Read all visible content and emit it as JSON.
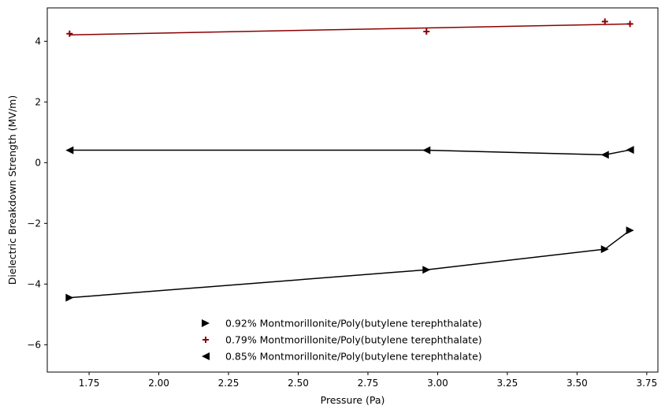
{
  "chart_data": {
    "type": "line",
    "title": "",
    "xlabel": "Pressure (Pa)",
    "ylabel": "Dielectric Breakdown Strength (MV/m)",
    "xlim": [
      1.6,
      3.79
    ],
    "ylim": [
      -6.9,
      5.1
    ],
    "xticks": [
      "1.75",
      "2.00",
      "2.25",
      "2.50",
      "2.75",
      "3.00",
      "3.25",
      "3.50",
      "3.75"
    ],
    "yticks": [
      "−6",
      "−4",
      "−2",
      "0",
      "2",
      "4"
    ],
    "grid": false,
    "legend_position": "bottom-center",
    "series": [
      {
        "name": "0.92% Montmorillonite/Poly(butylene terephthalate)",
        "marker": "triangle-right",
        "color": "#000000",
        "markers_only": false,
        "x": [
          1.68,
          2.96,
          3.6,
          3.69
        ],
        "y": [
          -4.45,
          -3.53,
          -2.85,
          -2.23
        ],
        "line_x": [
          1.68,
          2.96,
          3.6,
          3.69
        ],
        "line_y": [
          -4.45,
          -3.53,
          -2.85,
          -2.23
        ]
      },
      {
        "name": "0.79% Montmorillonite/Poly(butylene terephthalate)",
        "marker": "plus",
        "color": "#8b0000",
        "markers_only": true,
        "x": [
          1.68,
          2.96,
          3.6,
          3.69
        ],
        "y": [
          4.25,
          4.32,
          4.65,
          4.57
        ],
        "line_x": [
          1.68,
          3.69
        ],
        "line_y": [
          4.21,
          4.57
        ]
      },
      {
        "name": "0.85% Montmorillonite/Poly(butylene terephthalate)",
        "marker": "triangle-left",
        "color": "#000000",
        "markers_only": false,
        "x": [
          1.68,
          2.96,
          3.6,
          3.69
        ],
        "y": [
          0.41,
          0.41,
          0.26,
          0.42
        ],
        "line_x": [
          1.68,
          2.96,
          3.6,
          3.69
        ],
        "line_y": [
          0.41,
          0.41,
          0.26,
          0.42
        ]
      }
    ]
  }
}
